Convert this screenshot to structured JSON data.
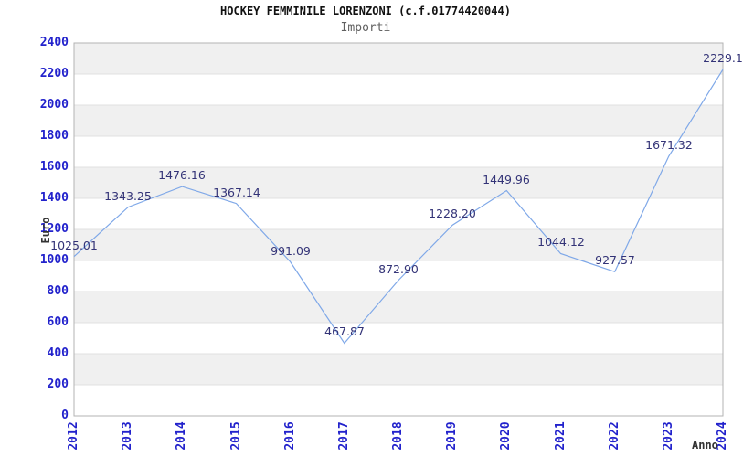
{
  "chart_data": {
    "type": "line",
    "title": "HOCKEY FEMMINILE LORENZONI (c.f.01774420044)",
    "subtitle": "Importi",
    "xlabel": "Anno",
    "ylabel": "Euro",
    "categories": [
      "2012",
      "2013",
      "2014",
      "2015",
      "2016",
      "2017",
      "2018",
      "2019",
      "2020",
      "2021",
      "2022",
      "2023",
      "2024"
    ],
    "values": [
      1025.01,
      1343.25,
      1476.16,
      1367.14,
      991.09,
      467.87,
      872.9,
      1228.2,
      1449.96,
      1044.12,
      927.57,
      1671.32,
      2229.1
    ],
    "point_labels": [
      "1025.01",
      "1343.25",
      "1476.16",
      "1367.14",
      "991.09",
      "467.87",
      "872.90",
      "1228.20",
      "1449.96",
      "1044.12",
      "927.57",
      "1671.32",
      "2229.1"
    ],
    "ylim": [
      0,
      2400
    ],
    "ytick_step": 200,
    "grid": "horizontal",
    "legend": null,
    "colors": {
      "line": "#7fa8e8",
      "tick_label": "#2222cc",
      "point_label": "#333377",
      "band": "#f0f0f0",
      "band_alt": "#ffffff",
      "gridline": "#e0e0e0",
      "border": "#b3b3b3",
      "title": "#111111",
      "subtitle": "#606060",
      "axis_title": "#333333"
    }
  }
}
